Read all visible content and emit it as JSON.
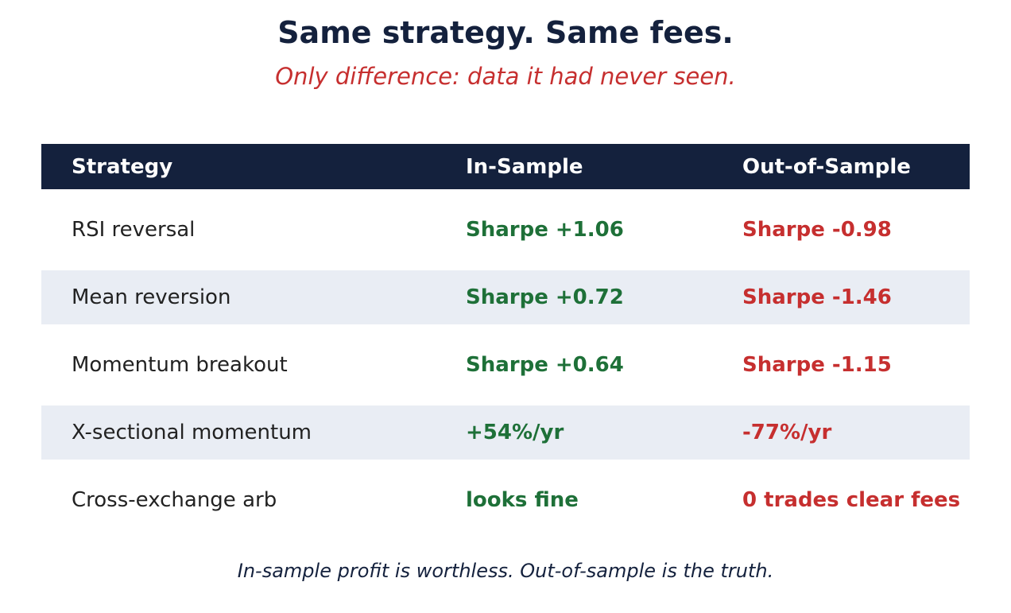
{
  "title": "Same strategy. Same fees.",
  "subtitle": "Only difference: data it had never seen.",
  "footer": "In-sample profit is worthless. Out-of-sample is the truth.",
  "colors": {
    "header_bg": "#14213d",
    "in_sample": "#1e7038",
    "out_of_sample": "#c62f2f",
    "shaded_row": "#e9edf4"
  },
  "chart_data": {
    "type": "table",
    "columns": [
      "Strategy",
      "In-Sample",
      "Out-of-Sample"
    ],
    "rows": [
      {
        "strategy": "RSI reversal",
        "in_sample": "Sharpe +1.06",
        "out_of_sample": "Sharpe -0.98"
      },
      {
        "strategy": "Mean reversion",
        "in_sample": "Sharpe +0.72",
        "out_of_sample": "Sharpe -1.46"
      },
      {
        "strategy": "Momentum breakout",
        "in_sample": "Sharpe +0.64",
        "out_of_sample": "Sharpe -1.15"
      },
      {
        "strategy": "X-sectional momentum",
        "in_sample": "+54%/yr",
        "out_of_sample": "-77%/yr"
      },
      {
        "strategy": "Cross-exchange arb",
        "in_sample": "looks fine",
        "out_of_sample": "0 trades clear fees"
      }
    ]
  }
}
